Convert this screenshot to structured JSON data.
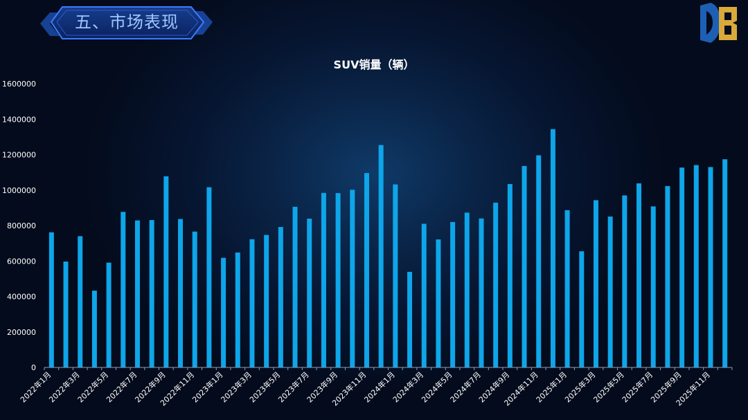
{
  "header": {
    "title": "五、市场表现"
  },
  "logo": {
    "icon": "db-logo-icon",
    "colors": [
      "#1d5fb4",
      "#d9a93a"
    ]
  },
  "colors": {
    "bar": "#0ea5e9",
    "axis": "#8aa0b8",
    "text": "#ffffff",
    "title_bg": "#0c2a66",
    "title_border": "#2f6fe0"
  },
  "chart_data": {
    "type": "bar",
    "title": "SUV销量（辆）",
    "xlabel": "",
    "ylabel": "",
    "ylim": [
      0,
      1600000
    ],
    "yticks": [
      0,
      200000,
      400000,
      600000,
      800000,
      1000000,
      1200000,
      1400000,
      1600000
    ],
    "grid": false,
    "legend": "none",
    "categories": [
      "2022年1月",
      "2022年2月",
      "2022年3月",
      "2022年4月",
      "2022年5月",
      "2022年6月",
      "2022年7月",
      "2022年8月",
      "2022年9月",
      "2022年10月",
      "2022年11月",
      "2022年12月",
      "2023年1月",
      "2023年2月",
      "2023年3月",
      "2023年4月",
      "2023年5月",
      "2023年6月",
      "2023年7月",
      "2023年8月",
      "2023年9月",
      "2023年10月",
      "2023年11月",
      "2023年12月",
      "2024年1月",
      "2024年2月",
      "2024年3月",
      "2024年4月",
      "2024年5月",
      "2024年6月",
      "2024年7月",
      "2024年8月",
      "2024年9月",
      "2024年10月",
      "2024年11月",
      "2024年12月",
      "2025年1月",
      "2025年2月",
      "2025年3月",
      "2025年4月",
      "2025年5月",
      "2025年6月",
      "2025年7月",
      "2025年8月",
      "2025年9月",
      "2025年10月",
      "2025年11月",
      "2025年12月"
    ],
    "x_tick_labels": [
      "2022年1月",
      "2022年3月",
      "2022年5月",
      "2022年7月",
      "2022年9月",
      "2022年11月",
      "2023年1月",
      "2023年3月",
      "2023年5月",
      "2023年7月",
      "2023年9月",
      "2023年11月",
      "2024年1月",
      "2024年3月",
      "2024年5月",
      "2024年7月",
      "2024年9月",
      "2024年11月",
      "2025年1月",
      "2025年3月",
      "2025年5月",
      "2025年7月",
      "2025年9月",
      "2025年11月"
    ],
    "values": [
      762000,
      597000,
      740000,
      433000,
      591000,
      877000,
      829000,
      831000,
      1078000,
      837000,
      766000,
      1016000,
      618000,
      648000,
      723000,
      747000,
      792000,
      906000,
      839000,
      984000,
      983000,
      1002000,
      1096000,
      1254000,
      1032000,
      539000,
      810000,
      722000,
      820000,
      873000,
      840000,
      929000,
      1034000,
      1136000,
      1196000,
      1344000,
      887000,
      655000,
      943000,
      851000,
      970000,
      1038000,
      908000,
      1023000,
      1127000,
      1141000,
      1130000,
      1174000
    ]
  }
}
